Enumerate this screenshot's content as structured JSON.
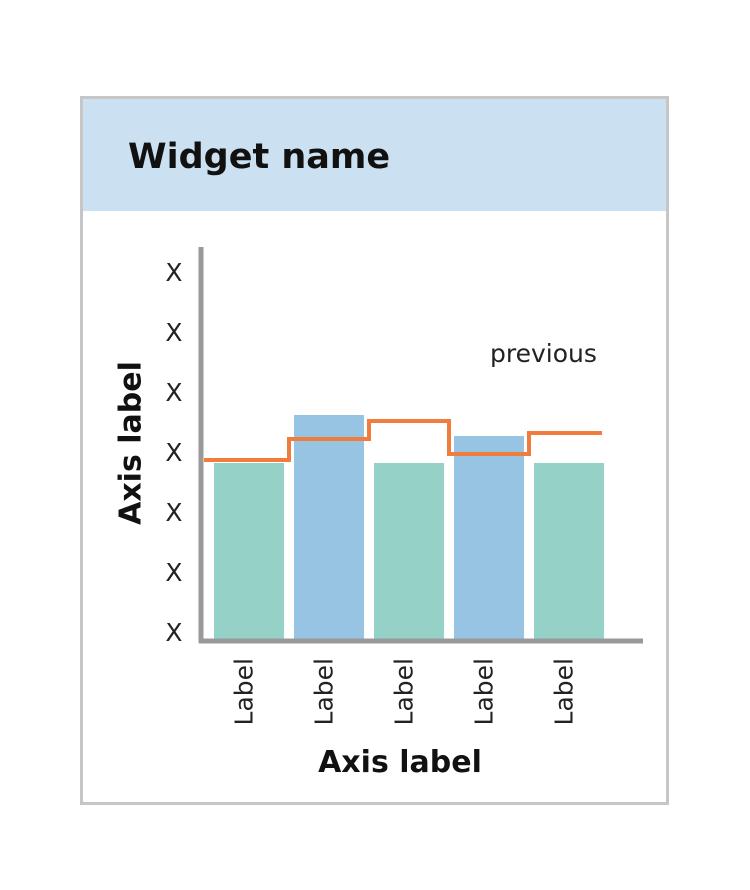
{
  "widget": {
    "title": "Widget name"
  },
  "chart_data": {
    "type": "bar",
    "title": "",
    "xlabel": "Axis label",
    "ylabel": "Axis label",
    "y_tick_labels": [
      "X",
      "X",
      "X",
      "X",
      "X",
      "X",
      "X"
    ],
    "ylim": [
      0,
      6.5
    ],
    "grid": false,
    "categories": [
      "Label",
      "Label",
      "Label",
      "Label",
      "Label"
    ],
    "series": [
      {
        "values": [
          2.95,
          3.75,
          2.95,
          3.4,
          2.95
        ]
      },
      {
        "name": "previous",
        "type": "step",
        "values": [
          3.0,
          3.35,
          3.65,
          3.1,
          3.45
        ]
      }
    ],
    "colors": {
      "bar_a": "#96d1c8",
      "bar_b": "#98c4e4",
      "line": "#f07c3e",
      "axis": "#999999"
    }
  }
}
